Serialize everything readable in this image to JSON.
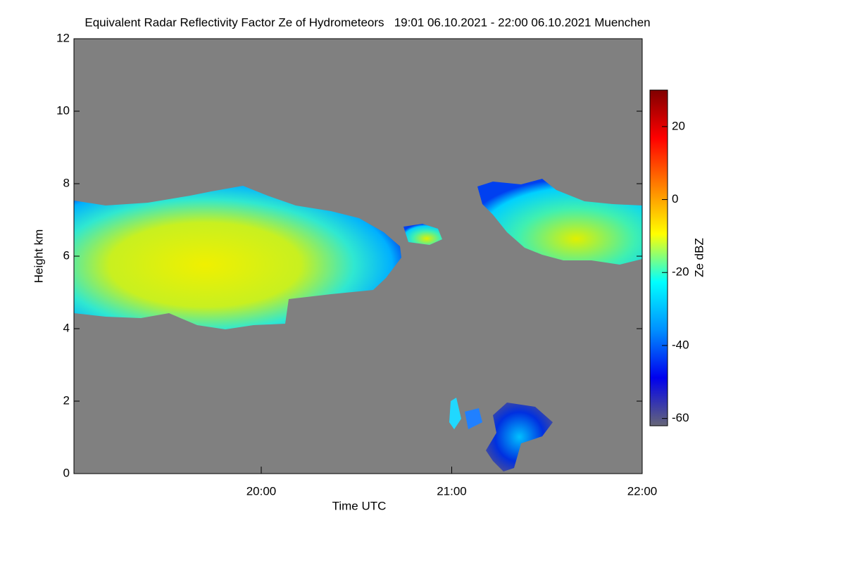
{
  "chart_data": {
    "type": "heatmap",
    "title": "Equivalent Radar Reflectivity Factor Ze of Hydrometeors   19:01 06.10.2021 - 22:00 06.10.2021 Muenchen",
    "x_label": "Time UTC",
    "y_label": "Height km",
    "xlim": [
      19.0167,
      22
    ],
    "xticks": [
      {
        "value": 20,
        "label": "20:00"
      },
      {
        "value": 21,
        "label": "21:00"
      },
      {
        "value": 22,
        "label": "22:00"
      }
    ],
    "ylim": [
      0,
      12
    ],
    "yticks": [
      0,
      2,
      4,
      6,
      8,
      10,
      12
    ],
    "colorbar_label": "Ze dBZ",
    "clim": [
      -62,
      30
    ],
    "cticks": [
      -60,
      -40,
      -20,
      0,
      20
    ],
    "colormap": [
      "#666677",
      "#0000ee",
      "#0090ff",
      "#00ffff",
      "#ffff00",
      "#ff8000",
      "#ff0000",
      "#800000"
    ],
    "background": "#808080"
  }
}
